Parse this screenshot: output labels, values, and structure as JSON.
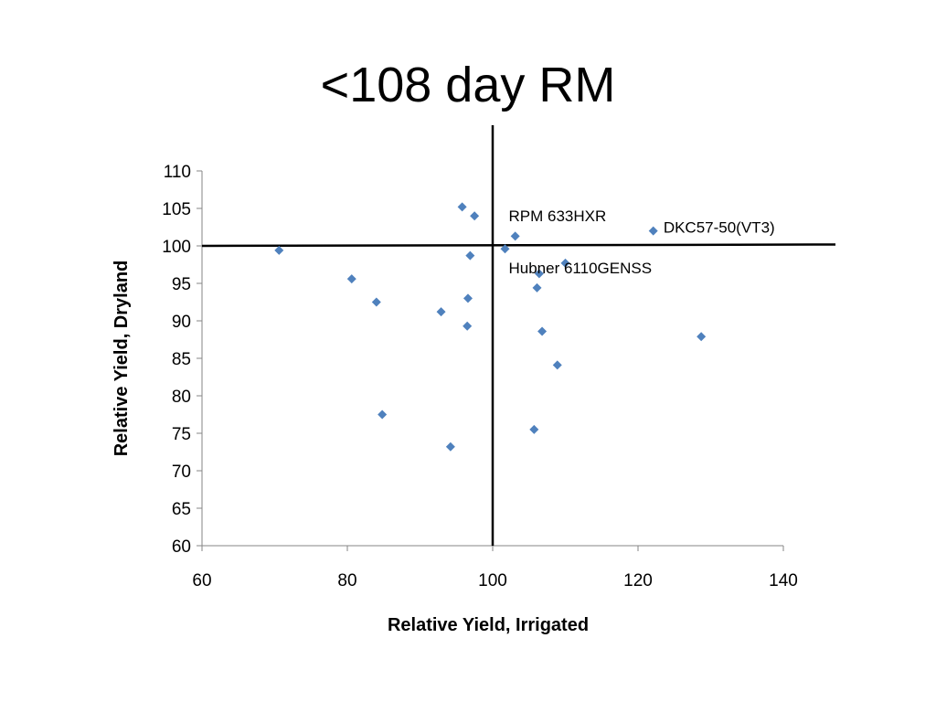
{
  "slide": {
    "title": "<108 day RM"
  },
  "chart_data": {
    "type": "scatter",
    "title": "<108 day RM",
    "xlabel": "Relative Yield, Irrigated",
    "ylabel": "Relative Yield, Dryland",
    "xlim": [
      60,
      140
    ],
    "ylim": [
      60,
      110
    ],
    "xticks": [
      "60",
      "80",
      "100",
      "120",
      "140"
    ],
    "yticks": [
      "60",
      "65",
      "70",
      "75",
      "80",
      "85",
      "90",
      "95",
      "100",
      "105",
      "110"
    ],
    "grid": false,
    "legend": "none",
    "marker_color": "#4F81BD",
    "reference_lines": {
      "x": 100,
      "y": 100
    },
    "points": [
      {
        "x": 70.6,
        "y": 99.4
      },
      {
        "x": 80.6,
        "y": 95.6
      },
      {
        "x": 84.0,
        "y": 92.5
      },
      {
        "x": 84.8,
        "y": 77.5
      },
      {
        "x": 92.9,
        "y": 91.2
      },
      {
        "x": 94.2,
        "y": 73.2
      },
      {
        "x": 95.8,
        "y": 105.2
      },
      {
        "x": 96.5,
        "y": 89.3
      },
      {
        "x": 96.6,
        "y": 93.0
      },
      {
        "x": 96.9,
        "y": 98.7
      },
      {
        "x": 97.5,
        "y": 104.0
      },
      {
        "x": 101.7,
        "y": 99.6
      },
      {
        "x": 103.1,
        "y": 101.3
      },
      {
        "x": 105.7,
        "y": 75.5
      },
      {
        "x": 106.1,
        "y": 94.4
      },
      {
        "x": 106.4,
        "y": 96.3
      },
      {
        "x": 106.8,
        "y": 88.6
      },
      {
        "x": 108.9,
        "y": 84.1
      },
      {
        "x": 110.0,
        "y": 97.7
      },
      {
        "x": 122.1,
        "y": 102.0
      },
      {
        "x": 128.7,
        "y": 87.9
      }
    ],
    "annotations": [
      {
        "text": "RPM 633HXR",
        "x": 102.2,
        "y": 104.0
      },
      {
        "text": "DKC57-50(VT3)",
        "x": 123.5,
        "y": 102.5
      },
      {
        "text": "Hubner 6110GENSS",
        "x": 102.2,
        "y": 97.1
      }
    ]
  }
}
